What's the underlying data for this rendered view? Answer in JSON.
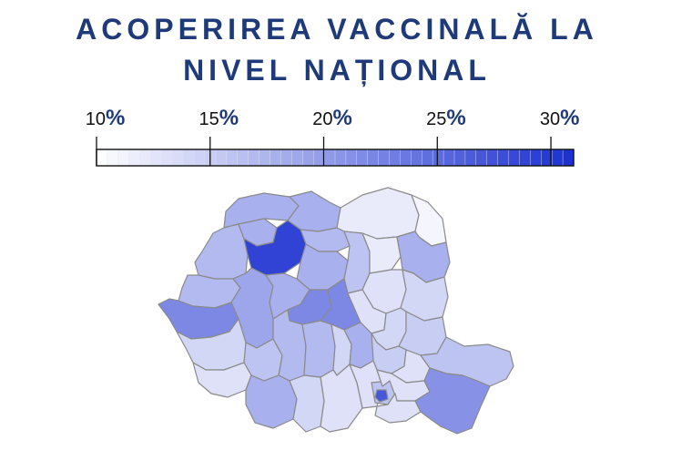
{
  "title": {
    "line1": "ACOPERIREA VACCINALĂ LA",
    "line2": "NIVEL NAȚIONAL"
  },
  "legend": {
    "min": 10,
    "max": 31,
    "ticks": [
      {
        "value": 10,
        "num": "10",
        "pct": "%"
      },
      {
        "value": 15,
        "num": "15",
        "pct": "%"
      },
      {
        "value": 20,
        "num": "20",
        "pct": "%"
      },
      {
        "value": 25,
        "num": "25",
        "pct": "%"
      },
      {
        "value": 30,
        "num": "30",
        "pct": "%"
      }
    ],
    "color_low": "#ffffff",
    "color_high": "#1a2fd0"
  },
  "colors": {
    "title": "#1f3a78",
    "border": "#8a8a8a"
  },
  "map_data": {
    "type": "choropleth",
    "region": "Romania",
    "unit": "%",
    "counties": [
      {
        "id": "SM",
        "value": 18
      },
      {
        "id": "MM",
        "value": 18
      },
      {
        "id": "SV",
        "value": 12
      },
      {
        "id": "BT",
        "value": 11
      },
      {
        "id": "BH",
        "value": 17
      },
      {
        "id": "SJ",
        "value": 18
      },
      {
        "id": "BN",
        "value": 17
      },
      {
        "id": "CJ",
        "value": 29
      },
      {
        "id": "MS",
        "value": 18
      },
      {
        "id": "HR",
        "value": 16
      },
      {
        "id": "NT",
        "value": 12
      },
      {
        "id": "IS",
        "value": 18
      },
      {
        "id": "BC",
        "value": 13
      },
      {
        "id": "VS",
        "value": 14
      },
      {
        "id": "AR",
        "value": 17
      },
      {
        "id": "TM",
        "value": 22
      },
      {
        "id": "HD",
        "value": 19
      },
      {
        "id": "AB",
        "value": 18
      },
      {
        "id": "SB",
        "value": 22
      },
      {
        "id": "BV",
        "value": 22
      },
      {
        "id": "CV",
        "value": 13
      },
      {
        "id": "VN",
        "value": 14
      },
      {
        "id": "GL",
        "value": 15
      },
      {
        "id": "CS",
        "value": 14
      },
      {
        "id": "GJ",
        "value": 16
      },
      {
        "id": "VL",
        "value": 17
      },
      {
        "id": "AG",
        "value": 17
      },
      {
        "id": "DB",
        "value": 14
      },
      {
        "id": "PH",
        "value": 18
      },
      {
        "id": "BZ",
        "value": 15
      },
      {
        "id": "BR",
        "value": 13
      },
      {
        "id": "TL",
        "value": 16
      },
      {
        "id": "MH",
        "value": 13
      },
      {
        "id": "DJ",
        "value": 18
      },
      {
        "id": "OT",
        "value": 14
      },
      {
        "id": "TR",
        "value": 13
      },
      {
        "id": "GR",
        "value": 13
      },
      {
        "id": "IF",
        "value": 16
      },
      {
        "id": "B",
        "value": 27
      },
      {
        "id": "IL",
        "value": 13
      },
      {
        "id": "CL",
        "value": 13
      },
      {
        "id": "CT",
        "value": 21
      }
    ]
  }
}
